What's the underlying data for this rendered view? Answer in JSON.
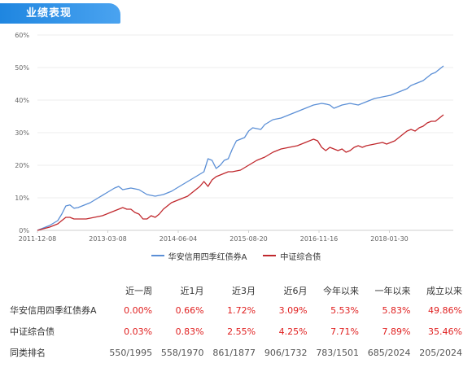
{
  "header": {
    "title": "业绩表现"
  },
  "chart_data": {
    "type": "line",
    "ylim": [
      0,
      60
    ],
    "yticks": [
      0,
      10,
      20,
      30,
      40,
      50,
      60
    ],
    "ytick_labels": [
      "0%",
      "10%",
      "20%",
      "30%",
      "40%",
      "50%",
      "60%"
    ],
    "x_labels": [
      "2011-12-08",
      "2013-03-08",
      "2014-06-04",
      "2015-08-20",
      "2016-11-16",
      "2018-01-30"
    ],
    "grid": true,
    "legend_position": "bottom",
    "series": [
      {
        "name": "华安信用四季红债券A",
        "color": "#5b8fd6",
        "points": [
          [
            0.0,
            0.0
          ],
          [
            0.03,
            1.5
          ],
          [
            0.05,
            3.0
          ],
          [
            0.06,
            5.0
          ],
          [
            0.07,
            7.5
          ],
          [
            0.08,
            7.8
          ],
          [
            0.09,
            6.8
          ],
          [
            0.1,
            7.0
          ],
          [
            0.11,
            7.5
          ],
          [
            0.13,
            8.5
          ],
          [
            0.15,
            10.0
          ],
          [
            0.17,
            11.5
          ],
          [
            0.19,
            13.0
          ],
          [
            0.2,
            13.5
          ],
          [
            0.21,
            12.5
          ],
          [
            0.23,
            13.0
          ],
          [
            0.25,
            12.5
          ],
          [
            0.27,
            11.0
          ],
          [
            0.29,
            10.5
          ],
          [
            0.31,
            11.0
          ],
          [
            0.33,
            12.0
          ],
          [
            0.35,
            13.5
          ],
          [
            0.37,
            15.0
          ],
          [
            0.39,
            16.5
          ],
          [
            0.41,
            18.0
          ],
          [
            0.42,
            22.0
          ],
          [
            0.43,
            21.5
          ],
          [
            0.44,
            19.0
          ],
          [
            0.45,
            20.0
          ],
          [
            0.46,
            21.5
          ],
          [
            0.47,
            22.0
          ],
          [
            0.48,
            25.0
          ],
          [
            0.49,
            27.5
          ],
          [
            0.51,
            28.5
          ],
          [
            0.52,
            30.5
          ],
          [
            0.53,
            31.5
          ],
          [
            0.55,
            31.0
          ],
          [
            0.56,
            32.5
          ],
          [
            0.58,
            34.0
          ],
          [
            0.6,
            34.5
          ],
          [
            0.62,
            35.5
          ],
          [
            0.64,
            36.5
          ],
          [
            0.66,
            37.5
          ],
          [
            0.68,
            38.5
          ],
          [
            0.7,
            39.0
          ],
          [
            0.71,
            38.8
          ],
          [
            0.72,
            38.5
          ],
          [
            0.73,
            37.5
          ],
          [
            0.75,
            38.5
          ],
          [
            0.77,
            39.0
          ],
          [
            0.79,
            38.5
          ],
          [
            0.81,
            39.5
          ],
          [
            0.83,
            40.5
          ],
          [
            0.85,
            41.0
          ],
          [
            0.87,
            41.5
          ],
          [
            0.89,
            42.5
          ],
          [
            0.91,
            43.5
          ],
          [
            0.92,
            44.5
          ],
          [
            0.93,
            45.0
          ],
          [
            0.94,
            45.5
          ],
          [
            0.95,
            46.0
          ],
          [
            0.96,
            47.0
          ],
          [
            0.97,
            48.0
          ],
          [
            0.98,
            48.5
          ],
          [
            0.99,
            49.5
          ],
          [
            1.0,
            50.5
          ]
        ]
      },
      {
        "name": "中证综合债",
        "color": "#c0282d",
        "points": [
          [
            0.0,
            0.0
          ],
          [
            0.03,
            1.0
          ],
          [
            0.05,
            2.0
          ],
          [
            0.06,
            3.0
          ],
          [
            0.07,
            4.0
          ],
          [
            0.08,
            4.0
          ],
          [
            0.09,
            3.5
          ],
          [
            0.1,
            3.5
          ],
          [
            0.12,
            3.5
          ],
          [
            0.14,
            4.0
          ],
          [
            0.16,
            4.5
          ],
          [
            0.18,
            5.5
          ],
          [
            0.2,
            6.5
          ],
          [
            0.21,
            7.0
          ],
          [
            0.22,
            6.5
          ],
          [
            0.23,
            6.5
          ],
          [
            0.24,
            5.5
          ],
          [
            0.25,
            5.0
          ],
          [
            0.26,
            3.5
          ],
          [
            0.27,
            3.5
          ],
          [
            0.28,
            4.5
          ],
          [
            0.29,
            4.0
          ],
          [
            0.3,
            5.0
          ],
          [
            0.31,
            6.5
          ],
          [
            0.32,
            7.5
          ],
          [
            0.33,
            8.5
          ],
          [
            0.35,
            9.5
          ],
          [
            0.37,
            10.5
          ],
          [
            0.38,
            11.5
          ],
          [
            0.39,
            12.5
          ],
          [
            0.4,
            13.5
          ],
          [
            0.41,
            15.0
          ],
          [
            0.42,
            13.5
          ],
          [
            0.43,
            15.5
          ],
          [
            0.44,
            16.5
          ],
          [
            0.45,
            17.0
          ],
          [
            0.46,
            17.5
          ],
          [
            0.47,
            18.0
          ],
          [
            0.48,
            18.0
          ],
          [
            0.5,
            18.5
          ],
          [
            0.52,
            20.0
          ],
          [
            0.54,
            21.5
          ],
          [
            0.56,
            22.5
          ],
          [
            0.58,
            24.0
          ],
          [
            0.6,
            25.0
          ],
          [
            0.62,
            25.5
          ],
          [
            0.64,
            26.0
          ],
          [
            0.66,
            27.0
          ],
          [
            0.68,
            28.0
          ],
          [
            0.69,
            27.5
          ],
          [
            0.7,
            25.5
          ],
          [
            0.71,
            24.5
          ],
          [
            0.72,
            25.5
          ],
          [
            0.73,
            25.0
          ],
          [
            0.74,
            24.5
          ],
          [
            0.75,
            25.0
          ],
          [
            0.76,
            24.0
          ],
          [
            0.77,
            24.5
          ],
          [
            0.78,
            25.5
          ],
          [
            0.79,
            26.0
          ],
          [
            0.8,
            25.5
          ],
          [
            0.81,
            26.0
          ],
          [
            0.83,
            26.5
          ],
          [
            0.85,
            27.0
          ],
          [
            0.86,
            26.5
          ],
          [
            0.87,
            27.0
          ],
          [
            0.88,
            27.5
          ],
          [
            0.89,
            28.5
          ],
          [
            0.9,
            29.5
          ],
          [
            0.91,
            30.5
          ],
          [
            0.92,
            31.0
          ],
          [
            0.93,
            30.5
          ],
          [
            0.94,
            31.5
          ],
          [
            0.95,
            32.0
          ],
          [
            0.96,
            33.0
          ],
          [
            0.97,
            33.5
          ],
          [
            0.98,
            33.5
          ],
          [
            0.99,
            34.5
          ],
          [
            1.0,
            35.5
          ]
        ]
      }
    ]
  },
  "table": {
    "headers": [
      "",
      "近一周",
      "近1月",
      "近3月",
      "近6月",
      "今年以来",
      "一年以来",
      "成立以来"
    ],
    "rows": [
      {
        "name": "华安信用四季红债券A",
        "values": [
          "0.00%",
          "0.66%",
          "1.72%",
          "3.09%",
          "5.53%",
          "5.83%",
          "49.86%"
        ],
        "style": "red"
      },
      {
        "name": "中证综合债",
        "values": [
          "0.03%",
          "0.83%",
          "2.55%",
          "4.25%",
          "7.71%",
          "7.89%",
          "35.46%"
        ],
        "style": "red"
      },
      {
        "name": "同类排名",
        "values": [
          "550/1995",
          "558/1970",
          "861/1877",
          "906/1732",
          "783/1501",
          "685/2024",
          "205/2024"
        ],
        "style": "gray"
      }
    ]
  }
}
